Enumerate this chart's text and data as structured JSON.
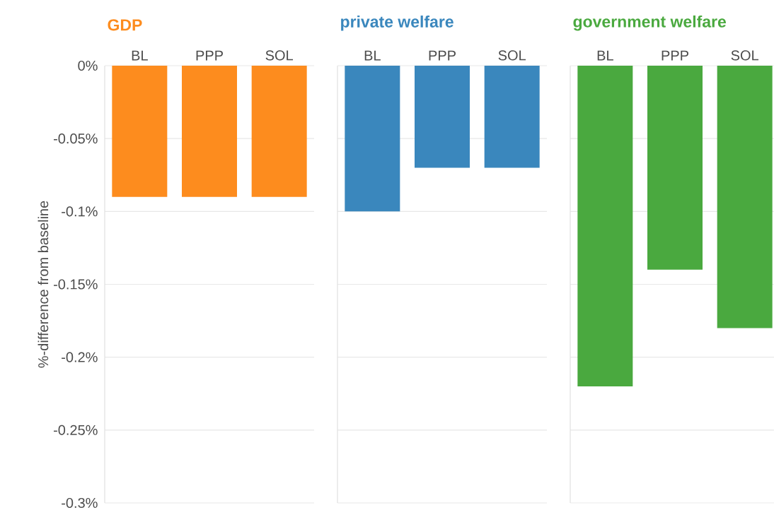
{
  "chart_data": [
    {
      "type": "bar",
      "title": "GDP",
      "ylabel": "%-difference from baseline",
      "categories": [
        "BL",
        "PPP",
        "SOL"
      ],
      "values": [
        -0.09,
        -0.09,
        -0.09
      ],
      "color": "#fd8c1e",
      "ylim": [
        -0.3,
        0
      ],
      "yticks": [
        {
          "value": 0,
          "label": "0%"
        },
        {
          "value": -0.05,
          "label": "-0.05%"
        },
        {
          "value": -0.1,
          "label": "-0.1%"
        },
        {
          "value": -0.15,
          "label": "-0.15%"
        },
        {
          "value": -0.2,
          "label": "-0.2%"
        },
        {
          "value": -0.25,
          "label": "-0.25%"
        },
        {
          "value": -0.3,
          "label": "-0.3%"
        }
      ],
      "grid": "y"
    },
    {
      "type": "bar",
      "title": "private welfare",
      "categories": [
        "BL",
        "PPP",
        "SOL"
      ],
      "values": [
        -0.1,
        -0.07,
        -0.07
      ],
      "color": "#3a87bd",
      "ylim": [
        -0.3,
        0
      ],
      "yticks": [
        {
          "value": 0,
          "label": null
        },
        {
          "value": -0.05,
          "label": null
        },
        {
          "value": -0.1,
          "label": null
        },
        {
          "value": -0.15,
          "label": null
        },
        {
          "value": -0.2,
          "label": null
        },
        {
          "value": -0.25,
          "label": null
        },
        {
          "value": -0.3,
          "label": null
        }
      ],
      "grid": "y",
      "tick_labels": "x"
    },
    {
      "type": "bar",
      "title": "government welfare",
      "categories": [
        "BL",
        "PPP",
        "SOL"
      ],
      "values": [
        -0.22,
        -0.14,
        -0.18
      ],
      "color": "#4aa93f",
      "ylim": [
        -0.3,
        0
      ],
      "yticks": [
        {
          "value": 0,
          "label": null
        },
        {
          "value": -0.05,
          "label": null
        },
        {
          "value": -0.1,
          "label": null
        },
        {
          "value": -0.15,
          "label": null
        },
        {
          "value": -0.2,
          "label": null
        },
        {
          "value": -0.25,
          "label": null
        },
        {
          "value": -0.3,
          "label": null
        }
      ],
      "grid": "y",
      "tick_labels": "x"
    }
  ]
}
